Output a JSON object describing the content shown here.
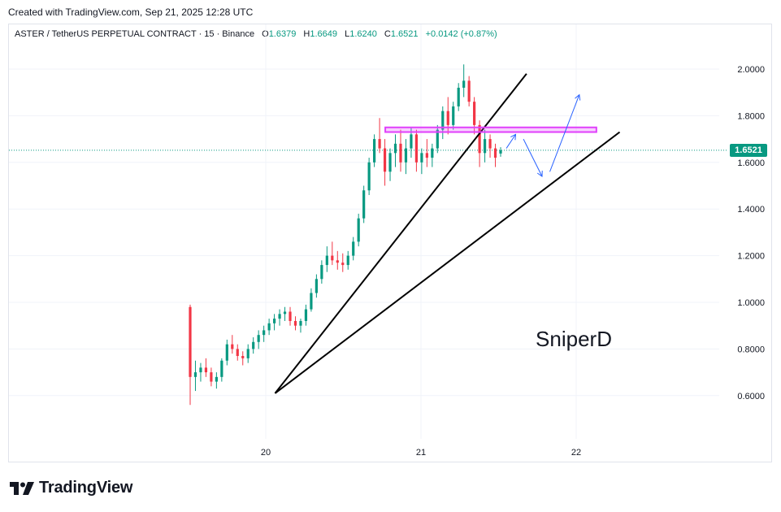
{
  "header": {
    "credit": "Created with TradingView.com, Sep 21, 2025 12:28 UTC"
  },
  "symbol": {
    "title": "ASTER / TetherUS PERPETUAL CONTRACT · 15 · Binance",
    "o_label": "O",
    "o": "1.6379",
    "h_label": "H",
    "h": "1.6649",
    "l_label": "L",
    "l": "1.6240",
    "c_label": "C",
    "c": "1.6521",
    "change": "+0.0142 (+0.87%)"
  },
  "last_price_label": "1.6521",
  "watermark": "SniperD",
  "brand": {
    "name": "TradingView"
  },
  "colors": {
    "up": "#089981",
    "down": "#f23645",
    "line_dotted": "#089981",
    "zone": "#e040fb",
    "arrow": "#2962ff"
  },
  "chart_data": {
    "type": "candlestick",
    "y_ticks": [
      "2.0000",
      "1.8000",
      "1.6000",
      "1.4000",
      "1.2000",
      "1.0000",
      "0.8000",
      "0.6000"
    ],
    "x_ticks": [
      "20",
      "21",
      "22"
    ],
    "ylim": [
      0.44,
      2.1
    ],
    "last_close": 1.6521,
    "candles": [
      [
        0.98,
        0.99,
        0.56,
        0.68
      ],
      [
        0.68,
        0.75,
        0.62,
        0.7
      ],
      [
        0.7,
        0.74,
        0.66,
        0.72
      ],
      [
        0.72,
        0.76,
        0.68,
        0.7
      ],
      [
        0.7,
        0.72,
        0.64,
        0.66
      ],
      [
        0.66,
        0.7,
        0.63,
        0.68
      ],
      [
        0.68,
        0.76,
        0.66,
        0.75
      ],
      [
        0.75,
        0.84,
        0.73,
        0.82
      ],
      [
        0.82,
        0.86,
        0.78,
        0.8
      ],
      [
        0.8,
        0.82,
        0.75,
        0.77
      ],
      [
        0.77,
        0.79,
        0.73,
        0.76
      ],
      [
        0.76,
        0.82,
        0.74,
        0.8
      ],
      [
        0.8,
        0.85,
        0.78,
        0.83
      ],
      [
        0.83,
        0.88,
        0.8,
        0.86
      ],
      [
        0.86,
        0.9,
        0.83,
        0.88
      ],
      [
        0.88,
        0.93,
        0.86,
        0.91
      ],
      [
        0.91,
        0.95,
        0.88,
        0.93
      ],
      [
        0.93,
        0.97,
        0.9,
        0.95
      ],
      [
        0.95,
        0.98,
        0.92,
        0.96
      ],
      [
        0.96,
        0.98,
        0.9,
        0.92
      ],
      [
        0.92,
        0.94,
        0.88,
        0.9
      ],
      [
        0.9,
        0.93,
        0.87,
        0.92
      ],
      [
        0.92,
        0.99,
        0.9,
        0.97
      ],
      [
        0.97,
        1.06,
        0.96,
        1.04
      ],
      [
        1.04,
        1.12,
        1.02,
        1.1
      ],
      [
        1.1,
        1.18,
        1.08,
        1.16
      ],
      [
        1.16,
        1.24,
        1.13,
        1.2
      ],
      [
        1.2,
        1.26,
        1.16,
        1.18
      ],
      [
        1.18,
        1.22,
        1.14,
        1.17
      ],
      [
        1.17,
        1.21,
        1.13,
        1.16
      ],
      [
        1.16,
        1.22,
        1.14,
        1.2
      ],
      [
        1.2,
        1.28,
        1.18,
        1.26
      ],
      [
        1.26,
        1.38,
        1.24,
        1.36
      ],
      [
        1.36,
        1.5,
        1.34,
        1.48
      ],
      [
        1.48,
        1.62,
        1.46,
        1.6
      ],
      [
        1.6,
        1.72,
        1.58,
        1.7
      ],
      [
        1.7,
        1.79,
        1.64,
        1.66
      ],
      [
        1.66,
        1.7,
        1.5,
        1.56
      ],
      [
        1.56,
        1.66,
        1.52,
        1.64
      ],
      [
        1.64,
        1.72,
        1.58,
        1.68
      ],
      [
        1.68,
        1.74,
        1.56,
        1.6
      ],
      [
        1.6,
        1.7,
        1.55,
        1.66
      ],
      [
        1.66,
        1.75,
        1.62,
        1.72
      ],
      [
        1.72,
        1.74,
        1.56,
        1.6
      ],
      [
        1.6,
        1.66,
        1.55,
        1.64
      ],
      [
        1.64,
        1.7,
        1.58,
        1.62
      ],
      [
        1.62,
        1.68,
        1.58,
        1.66
      ],
      [
        1.66,
        1.76,
        1.64,
        1.74
      ],
      [
        1.74,
        1.84,
        1.7,
        1.82
      ],
      [
        1.82,
        1.88,
        1.72,
        1.76
      ],
      [
        1.76,
        1.86,
        1.74,
        1.84
      ],
      [
        1.84,
        1.94,
        1.82,
        1.92
      ],
      [
        1.92,
        2.02,
        1.88,
        1.95
      ],
      [
        1.95,
        1.97,
        1.84,
        1.86
      ],
      [
        1.86,
        1.88,
        1.72,
        1.76
      ],
      [
        1.76,
        1.78,
        1.58,
        1.64
      ],
      [
        1.64,
        1.74,
        1.6,
        1.7
      ],
      [
        1.7,
        1.72,
        1.62,
        1.66
      ],
      [
        1.66,
        1.68,
        1.58,
        1.62
      ],
      [
        1.6379,
        1.6649,
        1.624,
        1.6521
      ]
    ],
    "drawings": {
      "trendlines": [
        {
          "from": [
            0.06,
            0.61
          ],
          "to": [
            1.68,
            1.98
          ]
        },
        {
          "from": [
            0.06,
            0.61
          ],
          "to": [
            2.28,
            1.73
          ]
        }
      ],
      "zone": {
        "from_x": 0.77,
        "to_x": 2.13,
        "y_low": 1.73,
        "y_high": 1.75
      },
      "projection_arrows": [
        [
          [
            1.55,
            1.66
          ],
          [
            1.61,
            1.72
          ]
        ],
        [
          [
            1.66,
            1.7
          ],
          [
            1.78,
            1.54
          ]
        ],
        [
          [
            1.83,
            1.56
          ],
          [
            2.02,
            1.89
          ]
        ]
      ]
    }
  }
}
